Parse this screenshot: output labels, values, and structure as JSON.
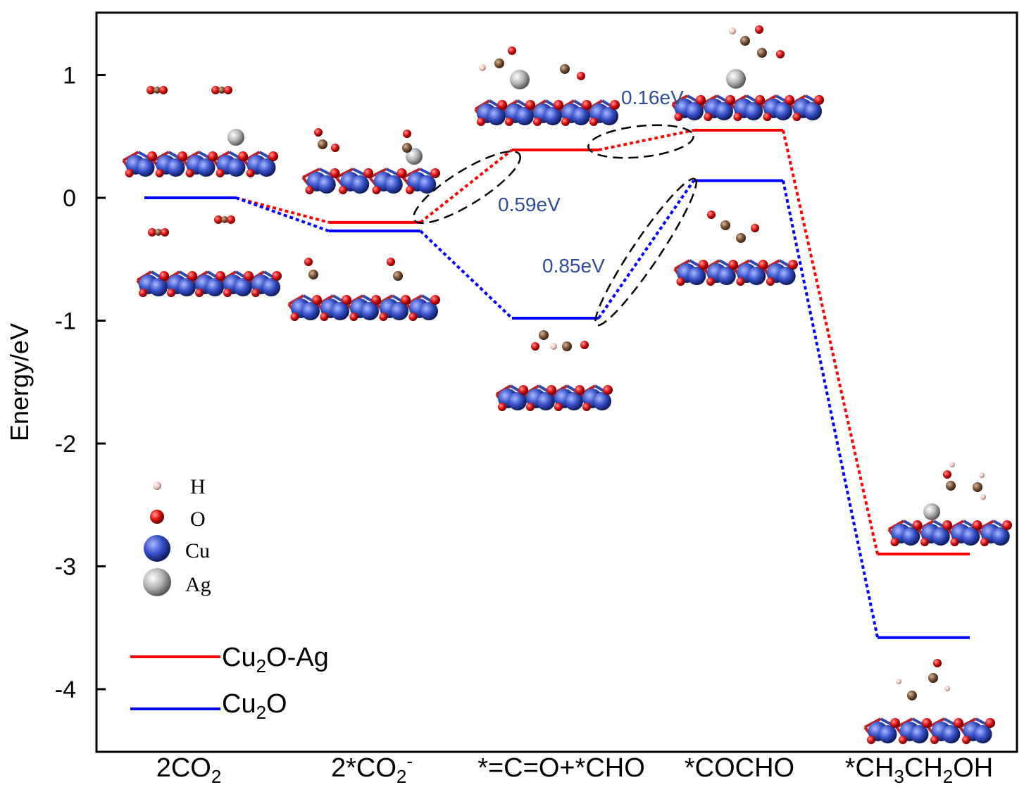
{
  "chart_data": {
    "type": "line",
    "subtype": "energy-level-diagram",
    "title": "",
    "xlabel": "",
    "ylabel": "Energy/eV",
    "ylim": [
      -4.5,
      1.5
    ],
    "yticks": [
      1,
      0,
      -1,
      -2,
      -3,
      -4
    ],
    "ytick_labels": [
      "1",
      "0",
      "-1",
      "-2",
      "-3",
      "-4"
    ],
    "categories": [
      {
        "pre": "2CO",
        "sub": "2",
        "sup": "",
        "post": ""
      },
      {
        "pre": "2*CO",
        "sub": "2",
        "sup": "-",
        "post": ""
      },
      {
        "pre": "*=C=O+*CHO",
        "sub": "",
        "sup": "",
        "post": ""
      },
      {
        "pre": "*COCHO",
        "sub": "",
        "sup": "",
        "post": ""
      },
      {
        "pre": "*CH",
        "sub": "3",
        "sup": "",
        "post": "CH",
        "sub2": "2",
        "post2": "OH"
      }
    ],
    "series": [
      {
        "name": "Cu2O-Ag",
        "legend_pre": "Cu",
        "legend_sub": "2",
        "legend_post": "O-Ag",
        "color": "#ff0000",
        "values": [
          0.0,
          -0.2,
          0.39,
          0.55,
          -2.9
        ]
      },
      {
        "name": "Cu2O",
        "legend_pre": "Cu",
        "legend_sub": "2",
        "legend_post": "O",
        "color": "#0000ff",
        "values": [
          0.0,
          -0.27,
          -0.98,
          0.14,
          -3.58
        ]
      }
    ],
    "annotations": [
      {
        "text": "0.59eV"
      },
      {
        "text": "0.85eV"
      },
      {
        "text": "0.16eV"
      }
    ],
    "atom_legend": [
      {
        "label": "H",
        "color": "#f2c9c0"
      },
      {
        "label": "O",
        "color": "#e01010"
      },
      {
        "label": "Cu",
        "color": "#3650c8"
      },
      {
        "label": "Ag",
        "color": "#b0b0b0"
      }
    ],
    "grid": false,
    "legend_position": "bottom-left"
  }
}
